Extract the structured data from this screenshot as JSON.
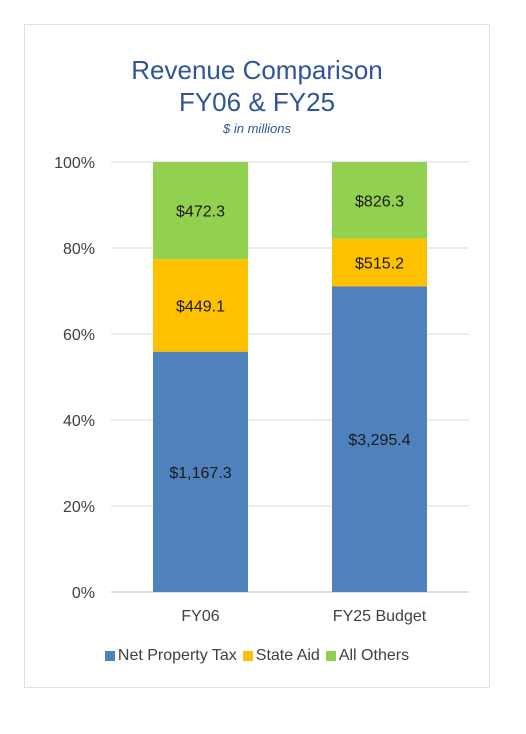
{
  "chart_data": {
    "type": "bar",
    "stacked": "percent",
    "title": "Revenue Comparison",
    "title_line2": "FY06 & FY25",
    "subtitle": "$ in millions",
    "categories": [
      "FY06",
      "FY25 Budget"
    ],
    "series": [
      {
        "name": "Net Property Tax",
        "values": [
          1167.3,
          3295.4
        ],
        "labels": [
          "$1,167.3",
          "$3,295.4"
        ],
        "color": "#4f81bd"
      },
      {
        "name": "State Aid",
        "values": [
          449.1,
          515.2
        ],
        "labels": [
          "$449.1",
          "$515.2"
        ],
        "color": "#ffc000"
      },
      {
        "name": "All Others",
        "values": [
          472.3,
          826.3
        ],
        "labels": [
          "$472.3",
          "$826.3"
        ],
        "color": "#92d050"
      }
    ],
    "yticks": [
      "0%",
      "20%",
      "40%",
      "60%",
      "80%",
      "100%"
    ],
    "ylim": [
      0,
      100
    ],
    "grid": true,
    "legend_position": "bottom"
  }
}
